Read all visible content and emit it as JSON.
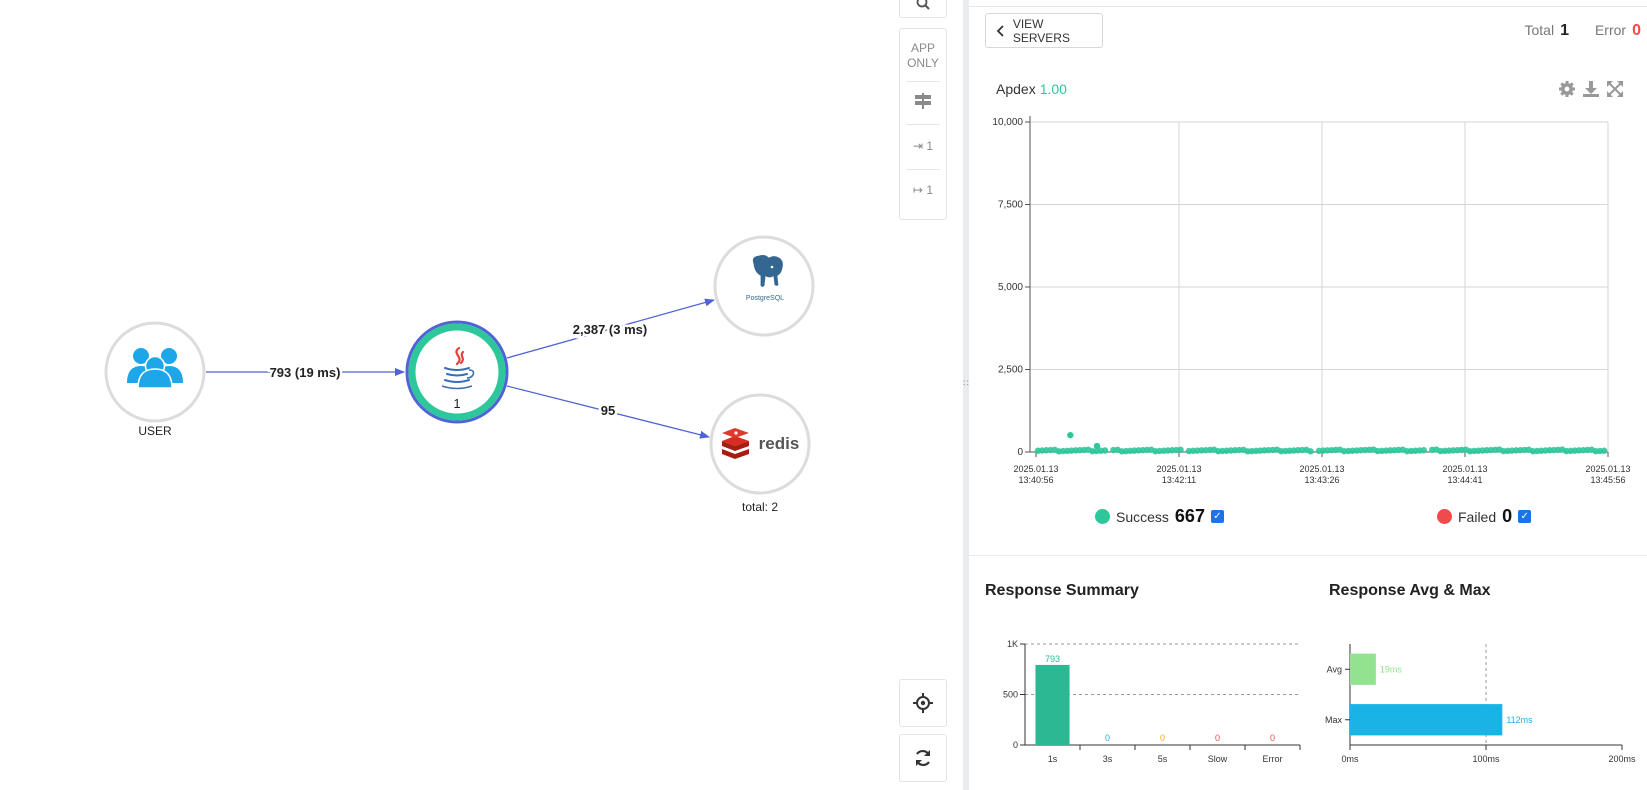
{
  "map": {
    "user_label": "USER",
    "java_count": "1",
    "redis_label": "total: 2",
    "postgres_text": "PostgreSQL",
    "redis_text": "redis",
    "edges": {
      "user_to_java": "793 (19 ms)",
      "java_to_postgres": "2,387 (3 ms)",
      "java_to_redis": "95"
    }
  },
  "toolbar": {
    "app_only_line1": "APP",
    "app_only_line2": "ONLY",
    "inbound_count": "1",
    "outbound_count": "1"
  },
  "panel": {
    "view_servers_label": "VIEW SERVERS",
    "total_label": "Total",
    "total_value": "1",
    "error_label": "Error",
    "error_value": "0",
    "apdex_label": "Apdex",
    "apdex_value": "1.00",
    "success_label": "Success",
    "success_count": "667",
    "failed_label": "Failed",
    "failed_count": "0",
    "response_summary_title": "Response Summary",
    "response_avgmax_title": "Response Avg & Max"
  },
  "colors": {
    "success": "#2ec79b",
    "failed": "#ef4b4b",
    "edge": "#4f63d6",
    "java_ring": "#2ec79b",
    "java_outer": "#4f63d6",
    "avg_bar": "#93e28f",
    "max_bar": "#1ab3e6",
    "summary_bar": "#2db894"
  },
  "chart_data": [
    {
      "type": "scatter",
      "title": "Apdex",
      "ylim": [
        0,
        10000
      ],
      "yticks": [
        "0",
        "2,500",
        "5,000",
        "7,500",
        "10,000"
      ],
      "yticks_values": [
        0,
        2500,
        5000,
        7500,
        10000
      ],
      "xticks": [
        [
          "2025.01.13",
          "13:40:56"
        ],
        [
          "2025.01.13",
          "13:42:11"
        ],
        [
          "2025.01.13",
          "13:43:26"
        ],
        [
          "2025.01.13",
          "13:44:41"
        ],
        [
          "2025.01.13",
          "13:45:56"
        ]
      ],
      "x_range_seconds": [
        0,
        300
      ],
      "series": [
        {
          "name": "Success",
          "outliers": [
            {
              "t": 18,
              "v": 510
            },
            {
              "t": 32,
              "v": 180
            }
          ],
          "baseline_value": 20,
          "count": 667
        },
        {
          "name": "Failed",
          "count": 0
        }
      ],
      "grid": true
    },
    {
      "type": "bar",
      "title": "Response Summary",
      "categories": [
        "1s",
        "3s",
        "5s",
        "Slow",
        "Error"
      ],
      "values": [
        793,
        0,
        0,
        0,
        0
      ],
      "value_colors": [
        "#2db894",
        "#1ab3e6",
        "#f5a623",
        "#ef4b4b",
        "#ef4b4b"
      ],
      "yticks": [
        "0",
        "500",
        "1K"
      ],
      "yticks_values": [
        0,
        500,
        1000
      ],
      "ylim": [
        0,
        1000
      ]
    },
    {
      "type": "bar",
      "orientation": "horizontal",
      "title": "Response Avg & Max",
      "categories": [
        "Avg",
        "Max"
      ],
      "values": [
        19,
        112
      ],
      "value_labels": [
        "19ms",
        "112ms"
      ],
      "xticks": [
        "0ms",
        "100ms",
        "200ms"
      ],
      "xticks_values": [
        0,
        100,
        200
      ],
      "xlim": [
        0,
        200
      ]
    }
  ]
}
